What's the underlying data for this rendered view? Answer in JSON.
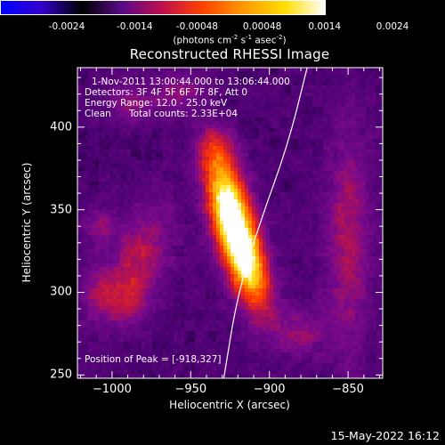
{
  "colorbar": {
    "ticks": [
      "-0.0024",
      "-0.0014",
      "-0.00048",
      "0.00048",
      "0.0014",
      "0.0024"
    ],
    "tick_values": [
      -0.0024,
      -0.0014,
      -0.00048,
      0.00048,
      0.0014,
      0.0024
    ],
    "unit_text": "(photons cm",
    "unit_exp1": "-2",
    "unit_mid": " s",
    "unit_exp2": "-1",
    "unit_mid2": " asec",
    "unit_exp3": "-2",
    "unit_close": ")",
    "range": [
      -0.0024,
      0.0024
    ],
    "colormap_stops": [
      "#0000ff",
      "#3300cc",
      "#000000",
      "#5a0a8a",
      "#c0104a",
      "#ff4400",
      "#ff9900",
      "#ffdd00",
      "#ffffff"
    ]
  },
  "annotations": {
    "time_range": "1-Nov-2011 13:00:44.000 to 13:06:44.000",
    "detectors": "Detectors: 3F 4F 5F 6F 7F 8F, Att 0",
    "energy": "Energy Range: 12.0 - 25.0 keV",
    "clean": "Clean",
    "counts": "Total counts: 2.33E+04",
    "peak": "Position of Peak = [-918,327]"
  },
  "timestamp": "15-May-2022 16:12",
  "chart_data": {
    "type": "heatmap",
    "title": "Reconstructed RHESSI Image",
    "xlabel": "Heliocentric X (arcsec)",
    "ylabel": "Heliocentric Y (arcsec)",
    "xlim": [
      -1022,
      -828
    ],
    "ylim": [
      248,
      436
    ],
    "xticks": [
      -1000,
      -950,
      -900,
      -850
    ],
    "yticks": [
      250,
      300,
      350,
      400
    ],
    "xtick_labels": [
      "−1000",
      "−950",
      "−900",
      "−850"
    ],
    "ytick_labels": [
      "250",
      "300",
      "350",
      "400"
    ],
    "peak": [
      -918,
      327
    ],
    "peak_value": 0.0024,
    "sources": [
      {
        "x": -918,
        "y": 327,
        "sx": 9,
        "sy": 26,
        "rot": -18,
        "amp": 1.0
      },
      {
        "x": -928,
        "y": 362,
        "sx": 9,
        "sy": 18,
        "rot": -12,
        "amp": 0.45
      },
      {
        "x": -935,
        "y": 388,
        "sx": 8,
        "sy": 9,
        "rot": 0,
        "amp": 0.28
      },
      {
        "x": -982,
        "y": 322,
        "sx": 12,
        "sy": 22,
        "rot": 20,
        "amp": 0.28
      },
      {
        "x": -992,
        "y": 296,
        "sx": 10,
        "sy": 10,
        "rot": 0,
        "amp": 0.22
      },
      {
        "x": -1008,
        "y": 340,
        "sx": 8,
        "sy": 8,
        "rot": 0,
        "amp": 0.18
      },
      {
        "x": -850,
        "y": 330,
        "sx": 10,
        "sy": 48,
        "rot": 0,
        "amp": 0.26
      },
      {
        "x": -880,
        "y": 276,
        "sx": 12,
        "sy": 10,
        "rot": 0,
        "amp": 0.2
      },
      {
        "x": -958,
        "y": 420,
        "sx": 12,
        "sy": 8,
        "rot": 0,
        "amp": 0.2
      },
      {
        "x": -990,
        "y": 415,
        "sx": 10,
        "sy": 9,
        "rot": 0,
        "amp": 0.18
      },
      {
        "x": -1010,
        "y": 300,
        "sx": 8,
        "sy": 14,
        "rot": 0,
        "amp": 0.18
      }
    ],
    "limb_curve": [
      [
        -929,
        248
      ],
      [
        -920,
        300
      ],
      [
        -905,
        345
      ],
      [
        -888,
        390
      ],
      [
        -876,
        436
      ]
    ]
  }
}
